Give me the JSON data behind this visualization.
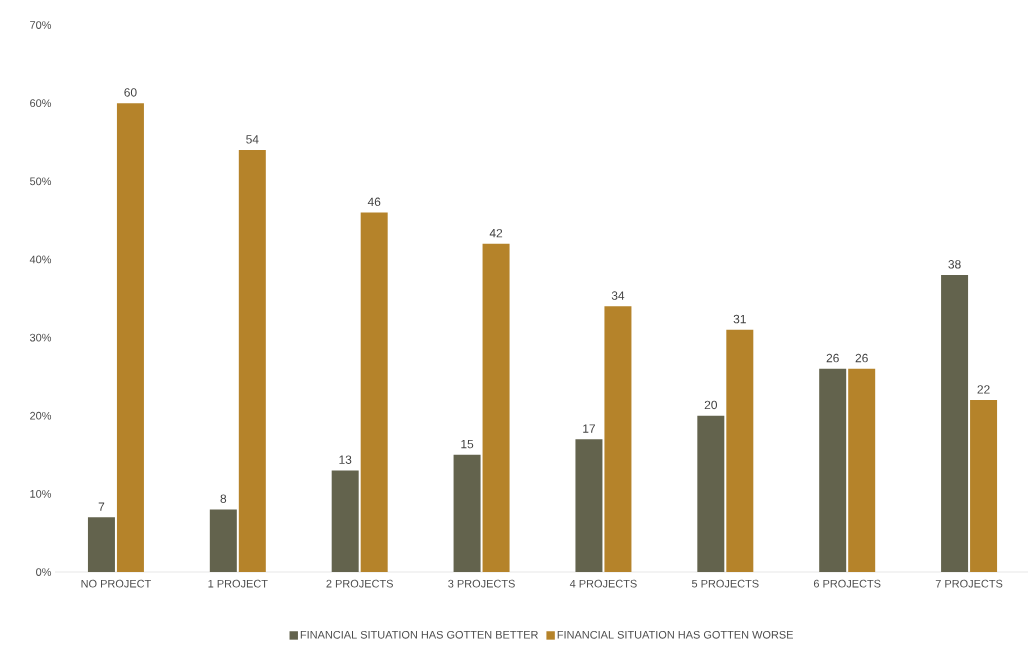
{
  "chart_data": {
    "type": "bar",
    "categories": [
      "NO PROJECT",
      "1 PROJECT",
      "2 PROJECTS",
      "3 PROJECTS",
      "4 PROJECTS",
      "5 PROJECTS",
      "6 PROJECTS",
      "7 PROJECTS"
    ],
    "series": [
      {
        "name": "FINANCIAL SITUATION HAS GOTTEN BETTER",
        "color": "#63634d",
        "values": [
          7,
          8,
          13,
          15,
          17,
          20,
          26,
          38
        ]
      },
      {
        "name": "FINANCIAL SITUATION HAS GOTTEN WORSE",
        "color": "#b5832a",
        "values": [
          60,
          54,
          46,
          42,
          34,
          31,
          26,
          22
        ]
      }
    ],
    "ylim": [
      0,
      70
    ],
    "yticks": [
      {
        "value": 0,
        "label": "0%"
      },
      {
        "value": 10,
        "label": "10%"
      },
      {
        "value": 20,
        "label": "20%"
      },
      {
        "value": 30,
        "label": "30%"
      },
      {
        "value": 40,
        "label": "40%"
      },
      {
        "value": 50,
        "label": "50%"
      },
      {
        "value": 60,
        "label": "60%"
      },
      {
        "value": 70,
        "label": "70%"
      }
    ],
    "data_labels": true,
    "legend": "bottom"
  }
}
